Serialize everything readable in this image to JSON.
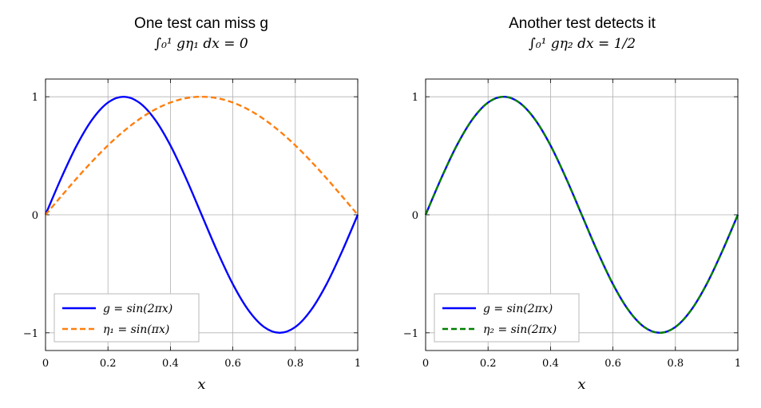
{
  "chart_data": [
    {
      "type": "line",
      "title": "One test can miss g",
      "subtitle": "∫₀¹ gη₁ dx = 0",
      "xlabel": "x",
      "ylabel": "",
      "xlim": [
        0,
        1
      ],
      "ylim": [
        -1.15,
        1.15
      ],
      "xticks": [
        "0",
        "0.2",
        "0.4",
        "0.6",
        "0.8",
        "1"
      ],
      "yticks": [
        "−1",
        "0",
        "1"
      ],
      "grid": true,
      "legend_position": "bottom-left",
      "x": [
        0,
        0.05,
        0.1,
        0.15,
        0.2,
        0.25,
        0.3,
        0.35,
        0.4,
        0.45,
        0.5,
        0.55,
        0.6,
        0.65,
        0.7,
        0.75,
        0.8,
        0.85,
        0.9,
        0.95,
        1
      ],
      "series": [
        {
          "name": "g = sin(2πx)",
          "color": "#0000ff",
          "dash": "solid",
          "values": [
            0,
            0.309,
            0.588,
            0.809,
            0.951,
            1,
            0.951,
            0.809,
            0.588,
            0.309,
            0,
            -0.309,
            -0.588,
            -0.809,
            -0.951,
            -1,
            -0.951,
            -0.809,
            -0.588,
            -0.309,
            0
          ]
        },
        {
          "name": "η₁ = sin(πx)",
          "color": "#ff7f0e",
          "dash": "dashed",
          "values": [
            0,
            0.156,
            0.309,
            0.454,
            0.588,
            0.707,
            0.809,
            0.891,
            0.951,
            0.988,
            1,
            0.988,
            0.951,
            0.891,
            0.809,
            0.707,
            0.588,
            0.454,
            0.309,
            0.156,
            0
          ]
        }
      ]
    },
    {
      "type": "line",
      "title": "Another test detects it",
      "subtitle": "∫₀¹ gη₂ dx = 1/2",
      "xlabel": "x",
      "ylabel": "",
      "xlim": [
        0,
        1
      ],
      "ylim": [
        -1.15,
        1.15
      ],
      "xticks": [
        "0",
        "0.2",
        "0.4",
        "0.6",
        "0.8",
        "1"
      ],
      "yticks": [
        "−1",
        "0",
        "1"
      ],
      "grid": true,
      "legend_position": "bottom-left",
      "x": [
        0,
        0.05,
        0.1,
        0.15,
        0.2,
        0.25,
        0.3,
        0.35,
        0.4,
        0.45,
        0.5,
        0.55,
        0.6,
        0.65,
        0.7,
        0.75,
        0.8,
        0.85,
        0.9,
        0.95,
        1
      ],
      "series": [
        {
          "name": "g = sin(2πx)",
          "color": "#0000ff",
          "dash": "solid",
          "values": [
            0,
            0.309,
            0.588,
            0.809,
            0.951,
            1,
            0.951,
            0.809,
            0.588,
            0.309,
            0,
            -0.309,
            -0.588,
            -0.809,
            -0.951,
            -1,
            -0.951,
            -0.809,
            -0.588,
            -0.309,
            0
          ]
        },
        {
          "name": "η₂ = sin(2πx)",
          "color": "#008000",
          "dash": "dashed",
          "values": [
            0,
            0.309,
            0.588,
            0.809,
            0.951,
            1,
            0.951,
            0.809,
            0.588,
            0.309,
            0,
            -0.309,
            -0.588,
            -0.809,
            -0.951,
            -1,
            -0.951,
            -0.809,
            -0.588,
            -0.309,
            0
          ]
        }
      ]
    }
  ]
}
